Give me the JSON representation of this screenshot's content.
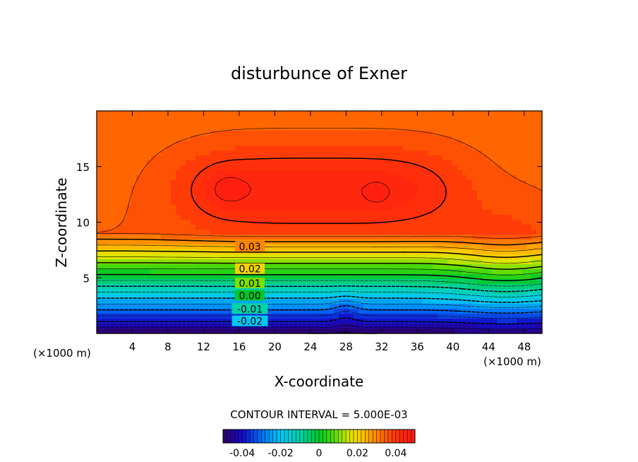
{
  "chart_data": {
    "type": "contour",
    "title": "disturbunce of Exner",
    "xlabel": "X-coordinate",
    "ylabel": "Z-coordinate",
    "x_unit": "(×1000 m)",
    "xlim": [
      0,
      50
    ],
    "ylim": [
      0,
      20
    ],
    "x_ticks": [
      "4",
      "8",
      "12",
      "16",
      "20",
      "24",
      "28",
      "32",
      "36",
      "40",
      "44",
      "48"
    ],
    "y_ticks": [
      "5",
      "10",
      "15"
    ],
    "contour_interval_label": "CONTOUR INTERVAL = 5.000E-03",
    "contour_labels": [
      {
        "text": "0.03",
        "x": 17.2,
        "y": 7.8
      },
      {
        "text": "0.02",
        "x": 17.2,
        "y": 5.8
      },
      {
        "text": "0.01",
        "x": 17.2,
        "y": 4.5
      },
      {
        "text": "0.00",
        "x": 17.2,
        "y": 3.4
      },
      {
        "text": "-0.01",
        "x": 17.2,
        "y": 2.2
      },
      {
        "text": "-0.02",
        "x": 17.2,
        "y": 1.1
      }
    ],
    "colorbar": {
      "range": [
        -0.05,
        0.05
      ],
      "tick_labels": [
        "-0.04",
        "-0.02",
        "0",
        "0.02",
        "0.04"
      ],
      "tick_values": [
        -0.04,
        -0.02,
        0,
        0.02,
        0.04
      ]
    },
    "field_features": {
      "maximum_centers": [
        {
          "x": 14.5,
          "y": 13.0,
          "value": 0.045
        },
        {
          "x": 31.5,
          "y": 12.6,
          "value": 0.045
        }
      ],
      "base_minimum_value": -0.05,
      "top_value": 0.035
    }
  }
}
